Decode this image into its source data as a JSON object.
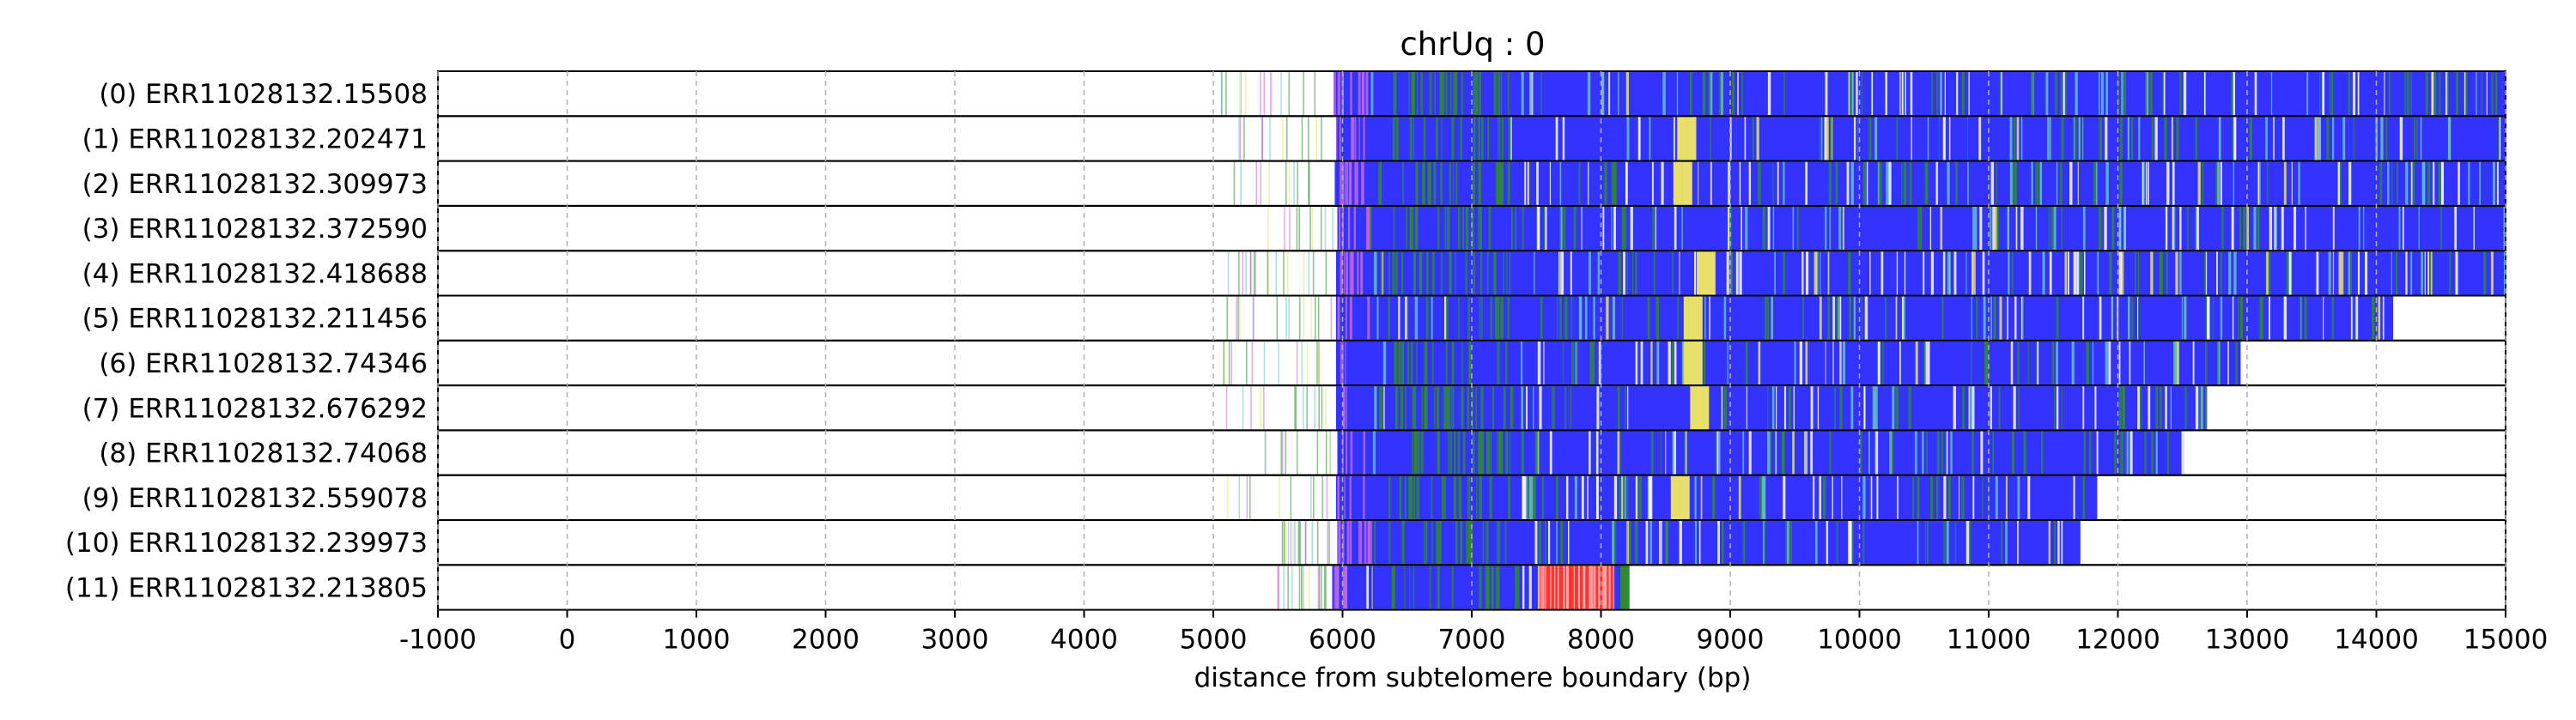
{
  "chart_data": {
    "type": "heatmap",
    "title": "chrUq : 0",
    "xlabel": "distance from subtelomere boundary (bp)",
    "xlim": [
      -1000,
      15000
    ],
    "xticks": [
      -1000,
      0,
      1000,
      2000,
      3000,
      4000,
      5000,
      6000,
      7000,
      8000,
      9000,
      10000,
      11000,
      12000,
      13000,
      14000,
      15000
    ],
    "grid": "vertical dashed",
    "colors": {
      "main": "#3333ff",
      "green": "#2e8b2e",
      "yellow": "#e8e06a",
      "purple": "#c266e0",
      "cyan": "#66c2c2",
      "red": "#ff3333",
      "light": "#ffffff"
    },
    "reads": [
      {
        "label": "(0) ERR11028132.15508",
        "sparse_start": 4990,
        "dense_start": 5930,
        "end": 15000,
        "green_peak": 6800,
        "yellow_at": null
      },
      {
        "label": "(1) ERR11028132.202471",
        "sparse_start": 5030,
        "dense_start": 5950,
        "end": 15000,
        "green_peak": 6800,
        "yellow_at": 8650
      },
      {
        "label": "(2) ERR11028132.309973",
        "sparse_start": 5040,
        "dense_start": 5940,
        "end": 15000,
        "green_peak": 6850,
        "yellow_at": 8620
      },
      {
        "label": "(3) ERR11028132.372590",
        "sparse_start": 5400,
        "dense_start": 5960,
        "end": 15000,
        "green_peak": 6850,
        "yellow_at": null
      },
      {
        "label": "(4) ERR11028132.418688",
        "sparse_start": 5020,
        "dense_start": 5950,
        "end": 15000,
        "green_peak": 6850,
        "yellow_at": 8800
      },
      {
        "label": "(5) ERR11028132.211456",
        "sparse_start": 5020,
        "dense_start": 5950,
        "end": 14130,
        "green_peak": 7300,
        "yellow_at": 8700
      },
      {
        "label": "(6) ERR11028132.74346",
        "sparse_start": 5030,
        "dense_start": 5950,
        "end": 12950,
        "green_peak": 6850,
        "yellow_at": 8700
      },
      {
        "label": "(7) ERR11028132.676292",
        "sparse_start": 5040,
        "dense_start": 5950,
        "end": 12690,
        "green_peak": 6850,
        "yellow_at": 8750
      },
      {
        "label": "(8) ERR11028132.74068",
        "sparse_start": 5390,
        "dense_start": 5960,
        "end": 12510,
        "green_peak": 6850,
        "yellow_at": null
      },
      {
        "label": "(9) ERR11028132.559078",
        "sparse_start": 5040,
        "dense_start": 5950,
        "end": 11840,
        "green_peak": 6850,
        "yellow_at": 8600
      },
      {
        "label": "(10) ERR11028132.239973",
        "sparse_start": 5500,
        "dense_start": 5960,
        "end": 11710,
        "green_peak": 6850,
        "yellow_at": null
      },
      {
        "label": "(11) ERR11028132.213805",
        "sparse_start": 5400,
        "dense_start": 5920,
        "end": 8220,
        "green_peak": 6850,
        "yellow_at": null,
        "red_region": [
          7520,
          8100
        ]
      }
    ]
  }
}
